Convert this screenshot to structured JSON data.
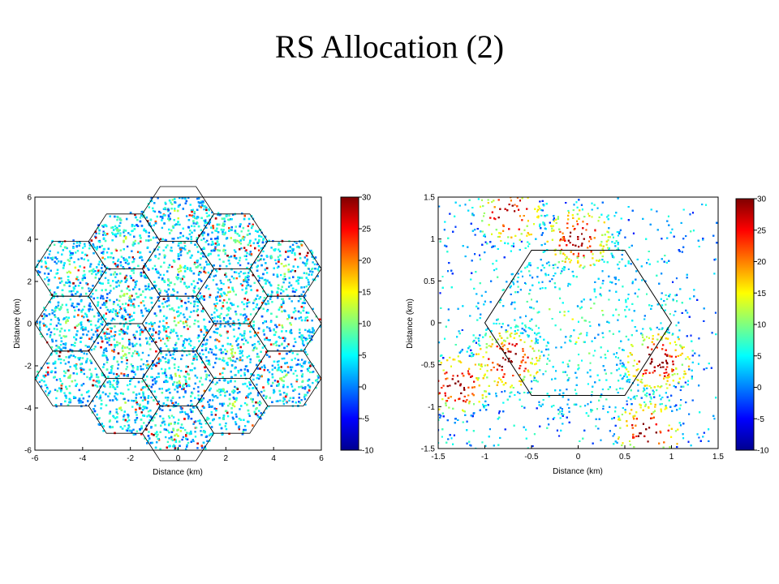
{
  "slide": {
    "title": "RS Allocation (2)"
  },
  "chart_data": [
    {
      "type": "heatmap",
      "title": "",
      "xlabel": "Distance (km)",
      "ylabel": "Distance (km)",
      "xlim": [
        -6,
        6
      ],
      "ylim": [
        -6,
        6
      ],
      "xticks": [
        "-6",
        "-4",
        "-2",
        "0",
        "2",
        "4",
        "6"
      ],
      "yticks": [
        "6",
        "4",
        "2",
        "0",
        "-2",
        "-4",
        "-6"
      ],
      "colorbar": {
        "range": [
          -10,
          30
        ],
        "ticks": [
          "30",
          "25",
          "20",
          "15",
          "10",
          "5",
          "0",
          "-5",
          "-10"
        ],
        "colormap": "jet"
      },
      "layout": "19-cell hexagonal layout with 3 sectors per cell",
      "hex_centers": [
        [
          0,
          0
        ],
        [
          0,
          2.6
        ],
        [
          0,
          -2.6
        ],
        [
          2.25,
          1.3
        ],
        [
          2.25,
          -1.3
        ],
        [
          -2.25,
          1.3
        ],
        [
          -2.25,
          -1.3
        ],
        [
          0,
          5.2
        ],
        [
          0,
          -5.2
        ],
        [
          2.25,
          3.9
        ],
        [
          2.25,
          -3.9
        ],
        [
          -2.25,
          3.9
        ],
        [
          -2.25,
          -3.9
        ],
        [
          4.5,
          0
        ],
        [
          -4.5,
          0
        ],
        [
          4.5,
          2.6
        ],
        [
          4.5,
          -2.6
        ],
        [
          -4.5,
          2.6
        ],
        [
          -4.5,
          -2.6
        ]
      ],
      "hex_radius_km": 1.5
    },
    {
      "type": "scatter",
      "title": "",
      "xlabel": "Distance (km)",
      "ylabel": "Distance (km)",
      "xlim": [
        -1.5,
        1.5
      ],
      "ylim": [
        -1.5,
        1.5
      ],
      "xticks": [
        "-1.5",
        "-1",
        "-0.5",
        "0",
        "0.5",
        "1",
        "1.5"
      ],
      "yticks": [
        "1.5",
        "1",
        "0.5",
        "0",
        "-0.5",
        "-1",
        "-1.5"
      ],
      "colorbar": {
        "range": [
          -10,
          30
        ],
        "ticks": [
          "30",
          "25",
          "20",
          "15",
          "10",
          "5",
          "0",
          "-5",
          "-10"
        ],
        "colormap": "jet"
      },
      "hexagon": {
        "center": [
          0,
          0
        ],
        "radius_km": 1.0
      },
      "relay_hotspots": [
        {
          "x": -0.75,
          "y": 1.3
        },
        {
          "x": 0.0,
          "y": 1.0
        },
        {
          "x": -0.75,
          "y": -0.45
        },
        {
          "x": -1.3,
          "y": -0.75
        },
        {
          "x": 0.85,
          "y": -0.45
        },
        {
          "x": 0.75,
          "y": -1.3
        }
      ]
    }
  ],
  "colors": {
    "high": "#800000",
    "low": "#00008f",
    "hex_outline": "#000000"
  }
}
